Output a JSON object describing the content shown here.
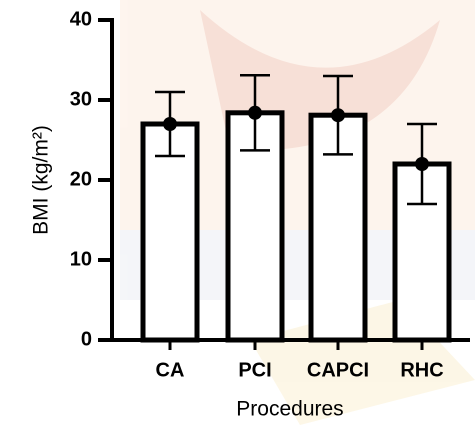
{
  "chart_data": {
    "type": "bar",
    "categories": [
      "CA",
      "PCI",
      "CAPCI",
      "RHC"
    ],
    "values": [
      27,
      28.4,
      28.1,
      22
    ],
    "errors": [
      4,
      4.7,
      4.9,
      5
    ],
    "color": "#ffffff",
    "edge_color": "#000000",
    "ylim": [
      0,
      40
    ],
    "yticks": [
      0,
      10,
      20,
      30,
      40
    ],
    "ylabel": "BMI (kg/m²)",
    "xlabel": "Procedures"
  }
}
